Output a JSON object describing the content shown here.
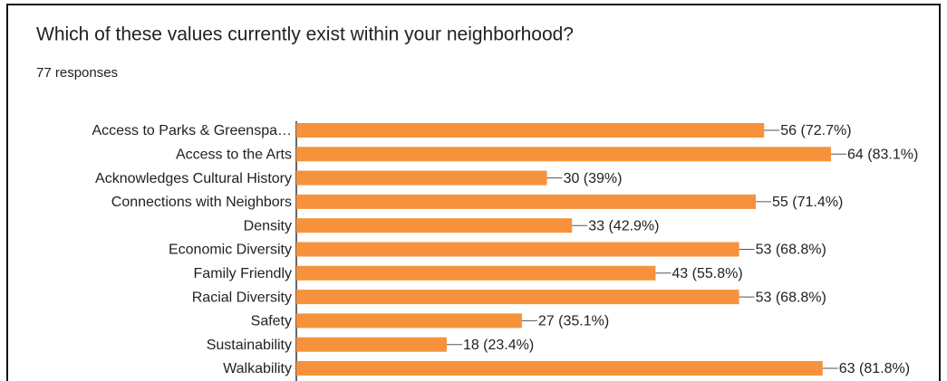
{
  "chart_data": {
    "type": "bar",
    "orientation": "horizontal",
    "title": "Which of these values currently exist within your neighborhood?",
    "subtitle": "77 responses",
    "color": "#f6923b",
    "categories": [
      "Access to Parks & Greenspa…",
      "Access to the Arts",
      "Acknowledges Cultural History",
      "Connections with Neighbors",
      "Density",
      "Economic Diversity",
      "Family Friendly",
      "Racial Diversity",
      "Safety",
      "Sustainability",
      "Walkability"
    ],
    "values": [
      56,
      64,
      30,
      55,
      33,
      53,
      43,
      53,
      27,
      18,
      63
    ],
    "value_labels": [
      "56 (72.7%)",
      "64 (83.1%)",
      "30 (39%)",
      "55 (71.4%)",
      "33 (42.9%)",
      "53 (68.8%)",
      "43 (55.8%)",
      "53 (68.8%)",
      "27 (35.1%)",
      "18 (23.4%)",
      "63 (81.8%)"
    ]
  }
}
